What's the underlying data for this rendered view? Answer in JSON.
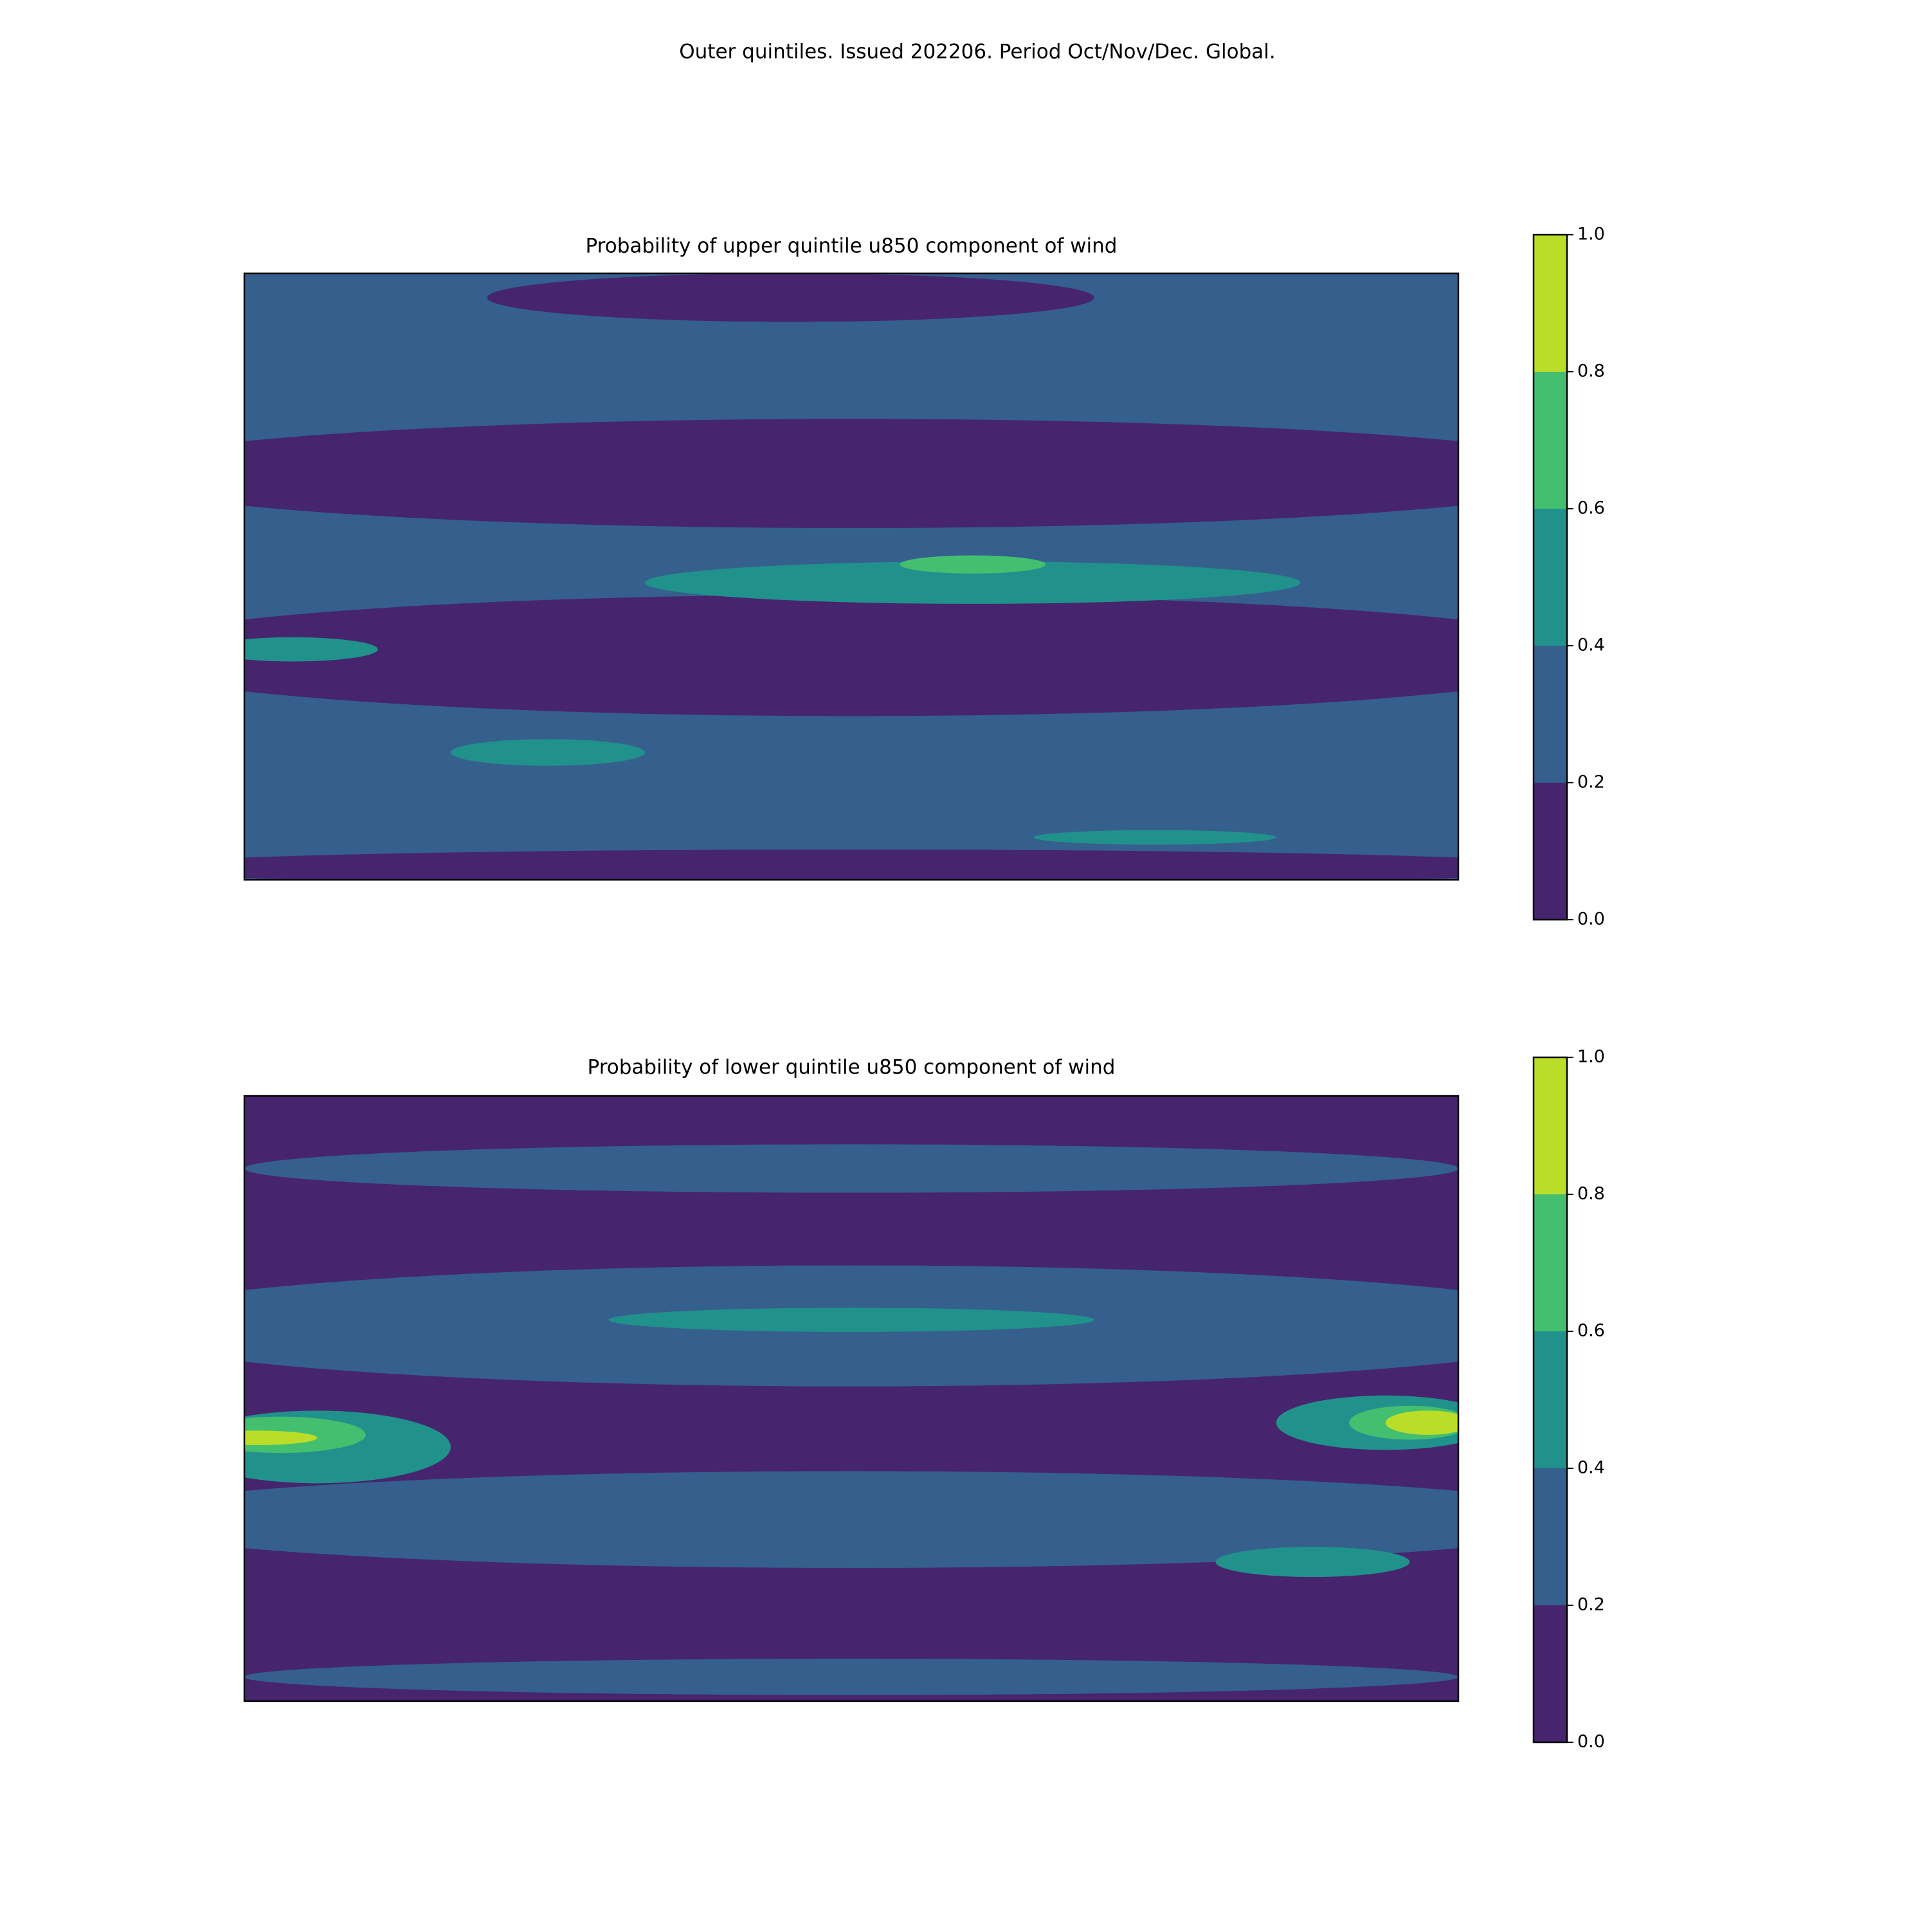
{
  "title": "Outer quintiles. Issued 202206. Period Oct/Nov/Dec. Global.",
  "panels": [
    {
      "title": "Probability of upper quintile u850 component of wind",
      "colorbar": {
        "ticks": [
          {
            "value": 0,
            "label": "0.0"
          },
          {
            "value": 0.2,
            "label": "0.2"
          },
          {
            "value": 0.4,
            "label": "0.4"
          },
          {
            "value": 0.6,
            "label": "0.6"
          },
          {
            "value": 0.8,
            "label": "0.8"
          },
          {
            "value": 1,
            "label": "1.0"
          }
        ],
        "colors": [
          "#46246e",
          "#355f8d",
          "#21918c",
          "#44bf70",
          "#bade28"
        ]
      }
    },
    {
      "title": "Probability of lower quintile u850 component of wind",
      "colorbar": {
        "ticks": [
          {
            "value": 0,
            "label": "0.0"
          },
          {
            "value": 0.2,
            "label": "0.2"
          },
          {
            "value": 0.4,
            "label": "0.4"
          },
          {
            "value": 0.6,
            "label": "0.6"
          },
          {
            "value": 0.8,
            "label": "0.8"
          },
          {
            "value": 1,
            "label": "1.0"
          }
        ],
        "colors": [
          "#46246e",
          "#355f8d",
          "#21918c",
          "#44bf70",
          "#bade28"
        ]
      }
    }
  ]
}
